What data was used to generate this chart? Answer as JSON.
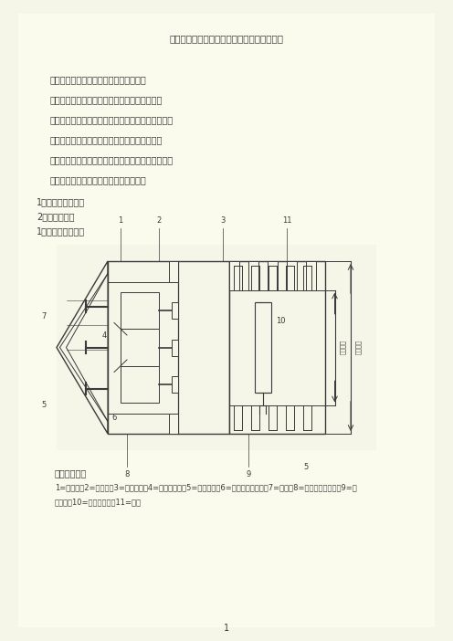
{
  "bg_color": "#F5F5E8",
  "title": "区间隧道盾构法工程风险防范及监理工作要点",
  "toc_items": [
    "（一）盾构法施工工艺及盾构机分类选型",
    "（二）盾构始发的工程风险防范及监理工作要点",
    "（三）盾构正常掘进的工程风险防范及监理工作要点",
    "（四）盾构接收的工程风险防范及监理工作要点",
    "（五）盾构特殊地段施工的工程风险及监理工作要点",
    "（一）盾构法施工工艺及盾构机分类选型"
  ],
  "section_items": [
    "1、盾构法施工工艺",
    "2、盾构的分类",
    "1、盾构法施工工艺"
  ],
  "diagram_caption": "盾构构造简图",
  "desc_line1": "1=切口环；2=支撑环；3=盾尾部分；4=支撑千斤顶；5=活动平台；6=活动平台千斤固；7=切口；8=盾构推进千斤顶；9=盾",
  "desc_line2": "尾空隙；10=管片拼装器；11=管片",
  "page_num": "1"
}
